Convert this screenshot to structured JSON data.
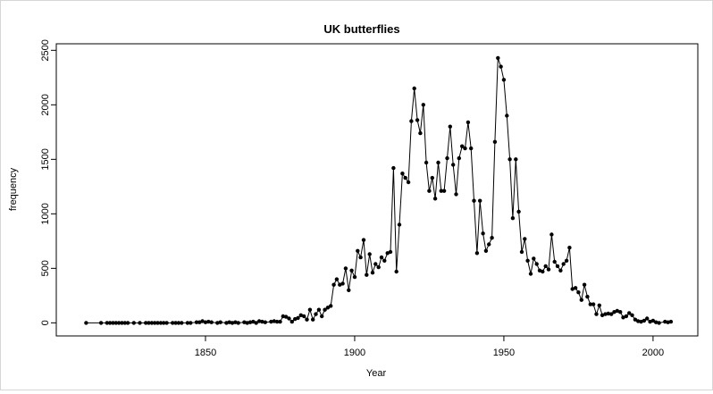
{
  "chart_data": {
    "type": "line",
    "title": "UK butterflies",
    "xlabel": "Year",
    "ylabel": "frequency",
    "xlim": [
      1800,
      2015
    ],
    "ylim": [
      -120,
      2560
    ],
    "x_ticks": [
      1850,
      1900,
      1950,
      2000
    ],
    "y_ticks": [
      0,
      500,
      1000,
      1500,
      2000,
      2500
    ],
    "grid": false,
    "series": [
      {
        "points": [
          [
            1810,
            0
          ],
          [
            1815,
            0
          ],
          [
            1817,
            0
          ],
          [
            1818,
            0
          ],
          [
            1819,
            0
          ],
          [
            1820,
            0
          ],
          [
            1821,
            0
          ],
          [
            1822,
            0
          ],
          [
            1823,
            0
          ],
          [
            1824,
            0
          ],
          [
            1826,
            0
          ],
          [
            1828,
            0
          ],
          [
            1830,
            0
          ],
          [
            1831,
            0
          ],
          [
            1832,
            0
          ],
          [
            1833,
            0
          ],
          [
            1834,
            0
          ],
          [
            1835,
            0
          ],
          [
            1836,
            0
          ],
          [
            1837,
            0
          ],
          [
            1839,
            0
          ],
          [
            1840,
            0
          ],
          [
            1841,
            0
          ],
          [
            1842,
            0
          ],
          [
            1844,
            0
          ],
          [
            1845,
            0
          ],
          [
            1847,
            5
          ],
          [
            1848,
            5
          ],
          [
            1849,
            15
          ],
          [
            1850,
            5
          ],
          [
            1851,
            10
          ],
          [
            1852,
            5
          ],
          [
            1854,
            0
          ],
          [
            1855,
            5
          ],
          [
            1857,
            0
          ],
          [
            1858,
            5
          ],
          [
            1859,
            0
          ],
          [
            1860,
            5
          ],
          [
            1861,
            0
          ],
          [
            1863,
            5
          ],
          [
            1864,
            0
          ],
          [
            1865,
            5
          ],
          [
            1866,
            10
          ],
          [
            1867,
            0
          ],
          [
            1868,
            15
          ],
          [
            1869,
            10
          ],
          [
            1870,
            5
          ],
          [
            1872,
            10
          ],
          [
            1873,
            15
          ],
          [
            1874,
            10
          ],
          [
            1875,
            10
          ],
          [
            1876,
            60
          ],
          [
            1877,
            55
          ],
          [
            1878,
            40
          ],
          [
            1879,
            10
          ],
          [
            1880,
            35
          ],
          [
            1881,
            45
          ],
          [
            1882,
            70
          ],
          [
            1883,
            60
          ],
          [
            1884,
            30
          ],
          [
            1885,
            120
          ],
          [
            1886,
            30
          ],
          [
            1887,
            80
          ],
          [
            1888,
            120
          ],
          [
            1889,
            60
          ],
          [
            1890,
            120
          ],
          [
            1891,
            140
          ],
          [
            1892,
            155
          ],
          [
            1893,
            350
          ],
          [
            1894,
            400
          ],
          [
            1895,
            350
          ],
          [
            1896,
            360
          ],
          [
            1897,
            500
          ],
          [
            1898,
            300
          ],
          [
            1899,
            480
          ],
          [
            1900,
            420
          ],
          [
            1901,
            660
          ],
          [
            1902,
            600
          ],
          [
            1903,
            760
          ],
          [
            1904,
            440
          ],
          [
            1905,
            630
          ],
          [
            1906,
            460
          ],
          [
            1907,
            540
          ],
          [
            1908,
            510
          ],
          [
            1909,
            600
          ],
          [
            1910,
            570
          ],
          [
            1911,
            640
          ],
          [
            1912,
            650
          ],
          [
            1913,
            1420
          ],
          [
            1914,
            470
          ],
          [
            1915,
            900
          ],
          [
            1916,
            1370
          ],
          [
            1917,
            1330
          ],
          [
            1918,
            1290
          ],
          [
            1919,
            1850
          ],
          [
            1920,
            2150
          ],
          [
            1921,
            1860
          ],
          [
            1922,
            1740
          ],
          [
            1923,
            2000
          ],
          [
            1924,
            1470
          ],
          [
            1925,
            1210
          ],
          [
            1926,
            1330
          ],
          [
            1927,
            1140
          ],
          [
            1928,
            1470
          ],
          [
            1929,
            1210
          ],
          [
            1930,
            1210
          ],
          [
            1931,
            1510
          ],
          [
            1932,
            1800
          ],
          [
            1933,
            1450
          ],
          [
            1934,
            1180
          ],
          [
            1935,
            1510
          ],
          [
            1936,
            1620
          ],
          [
            1937,
            1600
          ],
          [
            1938,
            1840
          ],
          [
            1939,
            1600
          ],
          [
            1940,
            1120
          ],
          [
            1941,
            640
          ],
          [
            1942,
            1120
          ],
          [
            1943,
            820
          ],
          [
            1944,
            660
          ],
          [
            1945,
            720
          ],
          [
            1946,
            780
          ],
          [
            1947,
            1660
          ],
          [
            1948,
            2430
          ],
          [
            1949,
            2350
          ],
          [
            1950,
            2230
          ],
          [
            1951,
            1900
          ],
          [
            1952,
            1500
          ],
          [
            1953,
            960
          ],
          [
            1954,
            1500
          ],
          [
            1955,
            1020
          ],
          [
            1956,
            650
          ],
          [
            1957,
            770
          ],
          [
            1958,
            570
          ],
          [
            1959,
            450
          ],
          [
            1960,
            590
          ],
          [
            1961,
            540
          ],
          [
            1962,
            480
          ],
          [
            1963,
            470
          ],
          [
            1964,
            520
          ],
          [
            1965,
            490
          ],
          [
            1966,
            810
          ],
          [
            1967,
            560
          ],
          [
            1968,
            520
          ],
          [
            1969,
            480
          ],
          [
            1970,
            540
          ],
          [
            1971,
            570
          ],
          [
            1972,
            690
          ],
          [
            1973,
            310
          ],
          [
            1974,
            320
          ],
          [
            1975,
            280
          ],
          [
            1976,
            210
          ],
          [
            1977,
            350
          ],
          [
            1978,
            240
          ],
          [
            1979,
            170
          ],
          [
            1980,
            170
          ],
          [
            1981,
            80
          ],
          [
            1982,
            160
          ],
          [
            1983,
            70
          ],
          [
            1984,
            80
          ],
          [
            1985,
            85
          ],
          [
            1986,
            80
          ],
          [
            1987,
            100
          ],
          [
            1988,
            110
          ],
          [
            1989,
            100
          ],
          [
            1990,
            50
          ],
          [
            1991,
            60
          ],
          [
            1992,
            90
          ],
          [
            1993,
            70
          ],
          [
            1994,
            30
          ],
          [
            1995,
            15
          ],
          [
            1996,
            10
          ],
          [
            1997,
            20
          ],
          [
            1998,
            40
          ],
          [
            1999,
            10
          ],
          [
            2000,
            20
          ],
          [
            2001,
            5
          ],
          [
            2002,
            0
          ],
          [
            2004,
            10
          ],
          [
            2005,
            5
          ],
          [
            2006,
            10
          ]
        ]
      }
    ]
  }
}
